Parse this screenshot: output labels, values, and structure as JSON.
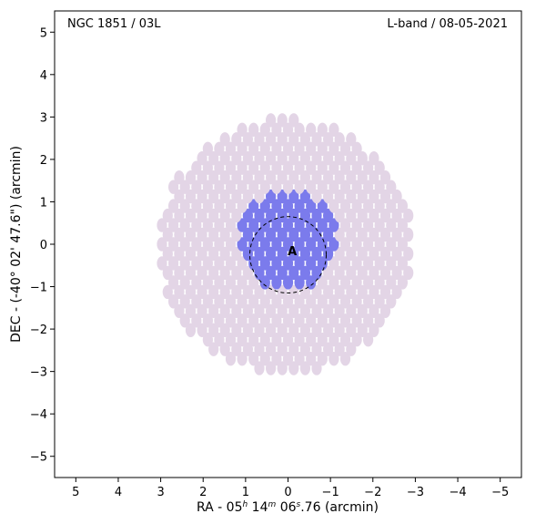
{
  "chart_data": {
    "type": "scatter",
    "title_left": "NGC 1851 / 03L",
    "title_right": "L-band / 08-05-2021",
    "xlabel": {
      "prefix": "RA - 05",
      "h": "h",
      "mid1": " 14",
      "m": "m",
      "mid2": " 06",
      "s": "s",
      "suffix": ".76 (arcmin)"
    },
    "ylabel": "DEC - (-40° 02' 47.6\") (arcmin)",
    "xlim": [
      5.5,
      -5.5
    ],
    "ylim": [
      -5.5,
      5.5
    ],
    "x_axis_inverted": true,
    "grid": false,
    "xticks": [
      5,
      4,
      3,
      2,
      1,
      0,
      -1,
      -2,
      -3,
      -4,
      -5
    ],
    "xtick_labels": [
      "5",
      "4",
      "3",
      "2",
      "1",
      "0",
      "−1",
      "−2",
      "−3",
      "−4",
      "−5"
    ],
    "yticks": [
      5,
      4,
      3,
      2,
      1,
      0,
      -1,
      -2,
      -3,
      -4,
      -5
    ],
    "ytick_labels": [
      "5",
      "4",
      "3",
      "2",
      "1",
      "0",
      "−1",
      "−2",
      "−3",
      "−4",
      "−5"
    ],
    "colors": {
      "outer_beams": "#e3d5e6",
      "inner_beams": "#7b7bec",
      "circle": "#000000"
    },
    "beam_grid": {
      "dx": 0.27,
      "dy": 0.225,
      "row_shift": 0.135,
      "beam_width": 0.24,
      "beam_height": 0.33
    },
    "outer_region": {
      "center": [
        0.05,
        -0.05
      ],
      "radius": 3.0
    },
    "inner_region": {
      "center": [
        0.0,
        0.1
      ],
      "radius": 1.2
    },
    "circle": {
      "center": [
        0.0,
        -0.25
      ],
      "radius": 0.9,
      "style": "dashed"
    },
    "label": {
      "text": "A",
      "x": -0.1,
      "y": -0.15
    }
  }
}
